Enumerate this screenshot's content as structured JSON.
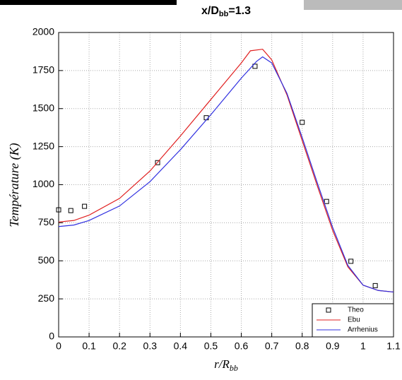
{
  "chart_data": {
    "type": "line",
    "title": {
      "main": "x/D",
      "sub": "bb",
      "rest": "=1.3"
    },
    "xlabel": {
      "main": "r/R",
      "sub": "bb"
    },
    "ylabel": "Température (K)",
    "xlim": [
      0,
      1.1
    ],
    "ylim": [
      0,
      2000
    ],
    "xticks": [
      0,
      0.1,
      0.2,
      0.3,
      0.4,
      0.5,
      0.6,
      0.7,
      0.8,
      0.9,
      1,
      1.1
    ],
    "yticks": [
      0,
      250,
      500,
      750,
      1000,
      1250,
      1500,
      1750,
      2000
    ],
    "grid": true,
    "legend": "lower right",
    "series": [
      {
        "name": "Theo",
        "mode": "markers",
        "color": "#000000",
        "x": [
          0,
          0.04,
          0.085,
          0.325,
          0.485,
          0.645,
          0.8,
          0.88,
          0.96,
          1.04
        ],
        "values": [
          835,
          830,
          858,
          1145,
          1440,
          1778,
          1410,
          890,
          497,
          337
        ]
      },
      {
        "name": "Ebu",
        "mode": "lines",
        "color": "#e02020",
        "x": [
          0,
          0.05,
          0.1,
          0.2,
          0.3,
          0.4,
          0.5,
          0.6,
          0.63,
          0.67,
          0.7,
          0.75,
          0.8,
          0.85,
          0.9,
          0.95,
          1.0,
          1.05,
          1.1
        ],
        "values": [
          755,
          765,
          800,
          910,
          1090,
          1320,
          1560,
          1800,
          1880,
          1890,
          1820,
          1590,
          1290,
          990,
          700,
          460,
          340,
          305,
          295
        ]
      },
      {
        "name": "Arrhenius",
        "mode": "lines",
        "color": "#3030e0",
        "x": [
          0,
          0.05,
          0.1,
          0.2,
          0.3,
          0.4,
          0.5,
          0.6,
          0.65,
          0.67,
          0.7,
          0.75,
          0.8,
          0.85,
          0.9,
          0.95,
          1.0,
          1.05,
          1.1
        ],
        "values": [
          725,
          735,
          765,
          860,
          1020,
          1230,
          1460,
          1700,
          1810,
          1840,
          1800,
          1600,
          1310,
          1010,
          720,
          470,
          340,
          305,
          295
        ]
      }
    ]
  }
}
